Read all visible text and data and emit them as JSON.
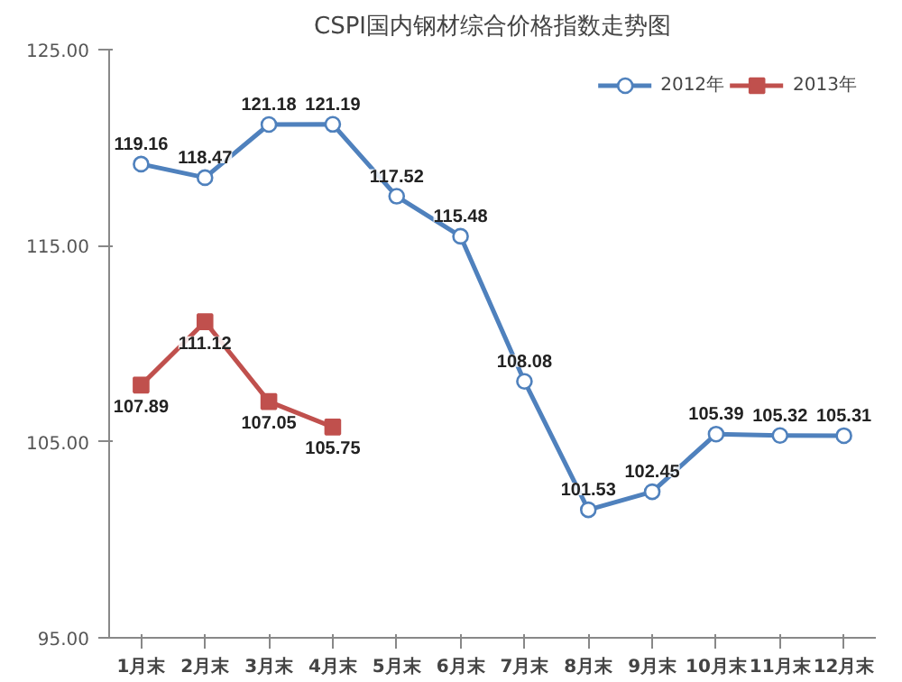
{
  "chart_data": {
    "type": "line",
    "title": "CSPI国内钢材综合价格指数走势图",
    "categories": [
      "1月末",
      "2月末",
      "3月末",
      "4月末",
      "5月末",
      "6月末",
      "7月末",
      "8月末",
      "9月末",
      "10月末",
      "11月末",
      "12月末"
    ],
    "series": [
      {
        "name": "2012年",
        "color": "#4f81bd",
        "marker": "circle",
        "values": [
          119.16,
          118.47,
          121.18,
          121.19,
          117.52,
          115.48,
          108.08,
          101.53,
          102.45,
          105.39,
          105.32,
          105.31
        ]
      },
      {
        "name": "2013年",
        "color": "#c0504d",
        "marker": "square",
        "values": [
          107.89,
          111.12,
          107.05,
          105.75,
          null,
          null,
          null,
          null,
          null,
          null,
          null,
          null
        ]
      }
    ],
    "ylim": [
      95,
      125
    ],
    "yticks": [
      {
        "value": 95,
        "label": "95.00"
      },
      {
        "value": 105,
        "label": "105.00"
      },
      {
        "value": 115,
        "label": "115.00"
      },
      {
        "value": 125,
        "label": "125.00"
      }
    ],
    "grid": false,
    "legend": "top right",
    "data_labels": true,
    "line_style": "solid"
  }
}
